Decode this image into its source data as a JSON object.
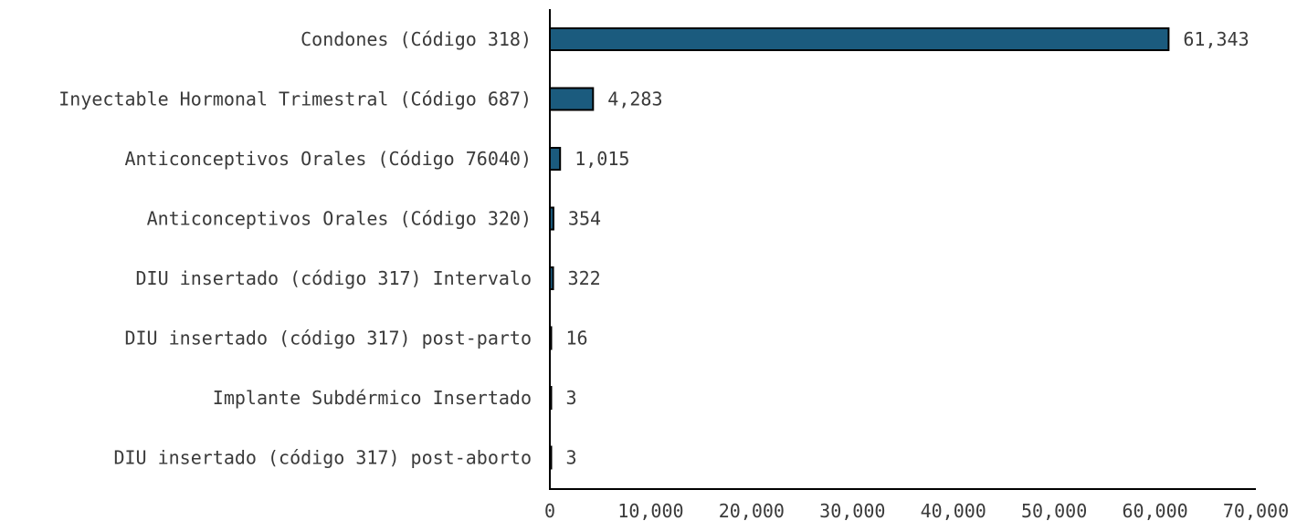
{
  "chart_data": {
    "type": "bar",
    "orientation": "horizontal",
    "categories": [
      "Condones (Código 318)",
      "Inyectable Hormonal Trimestral (Código 687)",
      "Anticonceptivos Orales (Código 76040)",
      "Anticonceptivos Orales (Código 320)",
      "DIU insertado (código 317) Intervalo",
      "DIU insertado (código 317) post-parto",
      "Implante Subdérmico Insertado",
      "DIU insertado (código 317) post-aborto"
    ],
    "values": [
      61343,
      4283,
      1015,
      354,
      322,
      16,
      3,
      3
    ],
    "value_labels": [
      "61,343",
      "4,283",
      "1,015",
      "354",
      "322",
      "16",
      "3",
      "3"
    ],
    "xlim": [
      0,
      70000
    ],
    "x_ticks": [
      0,
      10000,
      20000,
      30000,
      40000,
      50000,
      60000,
      70000
    ],
    "x_tick_labels": [
      "0",
      "10,000",
      "20,000",
      "30,000",
      "40,000",
      "50,000",
      "60,000",
      "70,000"
    ],
    "bar_color": "#1b5b7e",
    "grid": false,
    "legend": "none"
  }
}
